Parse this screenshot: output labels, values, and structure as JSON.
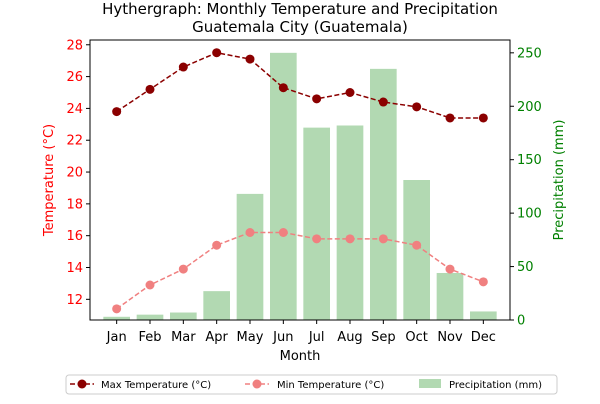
{
  "chart_data": {
    "type": "bar+line",
    "title_line1": "Hythergraph: Monthly Temperature and Precipitation",
    "title_line2": "Guatemala City (Guatemala)",
    "xlabel": "Month",
    "ylabel_left": "Temperature (°C)",
    "ylabel_right": "Precipitation (mm)",
    "categories": [
      "Jan",
      "Feb",
      "Mar",
      "Apr",
      "May",
      "Jun",
      "Jul",
      "Aug",
      "Sep",
      "Oct",
      "Nov",
      "Dec"
    ],
    "ylim_left": [
      10.7,
      28.3
    ],
    "ylim_right": [
      0,
      262
    ],
    "yticks_left": [
      "12",
      "14",
      "16",
      "18",
      "20",
      "22",
      "24",
      "26",
      "28"
    ],
    "yticks_right": [
      "0",
      "50",
      "100",
      "150",
      "200",
      "250"
    ],
    "series": [
      {
        "name": "Max Temperature (°C)",
        "type": "line",
        "axis": "left",
        "color": "#8b0000",
        "values": [
          23.8,
          25.2,
          26.6,
          27.5,
          27.1,
          25.3,
          24.6,
          25.0,
          24.4,
          24.1,
          23.4,
          23.4
        ]
      },
      {
        "name": "Min Temperature (°C)",
        "type": "line",
        "axis": "left",
        "color": "#f08080",
        "values": [
          11.4,
          12.9,
          13.9,
          15.4,
          16.2,
          16.2,
          15.8,
          15.8,
          15.8,
          15.4,
          13.9,
          13.1
        ]
      },
      {
        "name": "Precipitation (mm)",
        "type": "bar",
        "axis": "right",
        "color": "#b2d9b2",
        "values": [
          3,
          5,
          7,
          27,
          118,
          250,
          180,
          182,
          235,
          131,
          44,
          8
        ]
      }
    ],
    "legend": {
      "placement": "bottom-center",
      "items": [
        "Max Temperature (°C)",
        "Min Temperature (°C)",
        "Precipitation (mm)"
      ]
    },
    "left_axis_color": "#ff0000",
    "right_axis_color": "#008000",
    "grid": false
  }
}
